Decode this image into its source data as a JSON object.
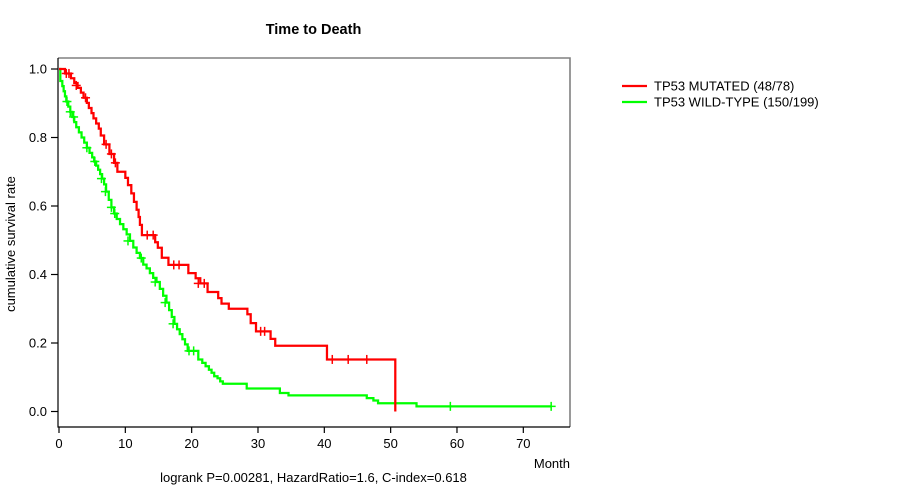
{
  "chart_data": {
    "type": "line",
    "subtype": "kaplan-meier-step",
    "title": "Time to Death",
    "xlabel": "Month",
    "ylabel": "cumulative survival rate",
    "footer": "logrank P=0.00281, HazardRatio=1.6, C-index=0.618",
    "xlim": [
      0,
      77
    ],
    "ylim": [
      0,
      1.0
    ],
    "x_ticks": [
      0,
      10,
      20,
      30,
      40,
      50,
      60,
      70
    ],
    "y_ticks": [
      1.0,
      0.8,
      0.6,
      0.4,
      0.2,
      0.0
    ],
    "y_tick_labels": [
      "1.0",
      "0.8",
      "0.6",
      "0.4",
      "0.2",
      "0.0"
    ],
    "grid": false,
    "legend_position": "right-outside",
    "box_color": "#808080",
    "axis_color": "#000000",
    "stats": {
      "logrank_p": 0.00281,
      "hazard_ratio": 1.6,
      "c_index": 0.618
    },
    "series": [
      {
        "name": "TP53 MUTATED (48/78)",
        "color": "#ff0000",
        "events": 48,
        "n": 78,
        "end_month": 50.7,
        "steps": [
          [
            0,
            1.0
          ],
          [
            0.9,
            0.987
          ],
          [
            1.8,
            0.973
          ],
          [
            2.3,
            0.959
          ],
          [
            2.8,
            0.945
          ],
          [
            3.3,
            0.931
          ],
          [
            3.7,
            0.916
          ],
          [
            4.2,
            0.901
          ],
          [
            4.5,
            0.886
          ],
          [
            4.9,
            0.871
          ],
          [
            5.2,
            0.856
          ],
          [
            5.6,
            0.841
          ],
          [
            6.0,
            0.826
          ],
          [
            6.3,
            0.806
          ],
          [
            6.8,
            0.78
          ],
          [
            7.6,
            0.752
          ],
          [
            8.3,
            0.726
          ],
          [
            8.8,
            0.7
          ],
          [
            10.0,
            0.682
          ],
          [
            10.4,
            0.661
          ],
          [
            10.9,
            0.637
          ],
          [
            11.3,
            0.612
          ],
          [
            11.7,
            0.589
          ],
          [
            12.0,
            0.568
          ],
          [
            12.2,
            0.545
          ],
          [
            12.5,
            0.515
          ],
          [
            14.5,
            0.494
          ],
          [
            14.9,
            0.478
          ],
          [
            15.5,
            0.449
          ],
          [
            16.5,
            0.428
          ],
          [
            19.5,
            0.404
          ],
          [
            20.6,
            0.389
          ],
          [
            21.3,
            0.374
          ],
          [
            22.4,
            0.349
          ],
          [
            24.0,
            0.331
          ],
          [
            24.5,
            0.315
          ],
          [
            25.6,
            0.3
          ],
          [
            28.4,
            0.284
          ],
          [
            28.9,
            0.258
          ],
          [
            29.7,
            0.234
          ],
          [
            31.9,
            0.212
          ],
          [
            32.6,
            0.192
          ],
          [
            40.4,
            0.152
          ],
          [
            50.7,
            0.0
          ]
        ],
        "censors": [
          [
            1.1,
            0.987
          ],
          [
            1.5,
            0.987
          ],
          [
            2.6,
            0.952
          ],
          [
            4.0,
            0.916
          ],
          [
            7.1,
            0.78
          ],
          [
            7.9,
            0.752
          ],
          [
            8.5,
            0.726
          ],
          [
            13.3,
            0.515
          ],
          [
            14.2,
            0.515
          ],
          [
            17.3,
            0.428
          ],
          [
            18.1,
            0.428
          ],
          [
            21.0,
            0.374
          ],
          [
            21.9,
            0.374
          ],
          [
            30.4,
            0.234
          ],
          [
            31.0,
            0.234
          ],
          [
            41.2,
            0.152
          ],
          [
            43.6,
            0.152
          ],
          [
            46.4,
            0.152
          ]
        ]
      },
      {
        "name": "TP53 WILD-TYPE (150/199)",
        "color": "#00ff00",
        "events": 150,
        "n": 199,
        "end_month": 74.2,
        "steps": [
          [
            0,
            1.0
          ],
          [
            0.2,
            0.965
          ],
          [
            0.5,
            0.95
          ],
          [
            0.7,
            0.935
          ],
          [
            0.9,
            0.92
          ],
          [
            1.1,
            0.905
          ],
          [
            1.4,
            0.89
          ],
          [
            1.7,
            0.875
          ],
          [
            2.0,
            0.86
          ],
          [
            2.3,
            0.845
          ],
          [
            2.6,
            0.83
          ],
          [
            3.0,
            0.815
          ],
          [
            3.4,
            0.8
          ],
          [
            3.8,
            0.785
          ],
          [
            4.2,
            0.77
          ],
          [
            4.6,
            0.755
          ],
          [
            5.0,
            0.742
          ],
          [
            5.3,
            0.73
          ],
          [
            5.6,
            0.718
          ],
          [
            5.9,
            0.706
          ],
          [
            6.2,
            0.693
          ],
          [
            6.5,
            0.68
          ],
          [
            6.8,
            0.663
          ],
          [
            7.1,
            0.642
          ],
          [
            7.5,
            0.618
          ],
          [
            7.9,
            0.596
          ],
          [
            8.3,
            0.578
          ],
          [
            8.7,
            0.562
          ],
          [
            9.2,
            0.547
          ],
          [
            9.7,
            0.532
          ],
          [
            10.2,
            0.517
          ],
          [
            10.7,
            0.498
          ],
          [
            11.2,
            0.479
          ],
          [
            11.7,
            0.463
          ],
          [
            12.2,
            0.448
          ],
          [
            12.7,
            0.429
          ],
          [
            13.2,
            0.418
          ],
          [
            13.7,
            0.404
          ],
          [
            14.2,
            0.39
          ],
          [
            14.7,
            0.378
          ],
          [
            15.2,
            0.358
          ],
          [
            15.7,
            0.338
          ],
          [
            16.2,
            0.318
          ],
          [
            16.6,
            0.296
          ],
          [
            17.0,
            0.276
          ],
          [
            17.4,
            0.256
          ],
          [
            17.8,
            0.24
          ],
          [
            18.2,
            0.226
          ],
          [
            18.6,
            0.211
          ],
          [
            19.0,
            0.196
          ],
          [
            19.4,
            0.177
          ],
          [
            21.0,
            0.152
          ],
          [
            21.6,
            0.142
          ],
          [
            22.1,
            0.132
          ],
          [
            22.6,
            0.122
          ],
          [
            23.0,
            0.113
          ],
          [
            23.4,
            0.103
          ],
          [
            23.9,
            0.097
          ],
          [
            24.3,
            0.088
          ],
          [
            24.7,
            0.081
          ],
          [
            28.3,
            0.067
          ],
          [
            33.3,
            0.054
          ],
          [
            34.6,
            0.047
          ],
          [
            46.4,
            0.039
          ],
          [
            47.4,
            0.032
          ],
          [
            48.1,
            0.024
          ],
          [
            53.9,
            0.015
          ]
        ],
        "censors": [
          [
            1.2,
            0.905
          ],
          [
            1.7,
            0.875
          ],
          [
            2.2,
            0.86
          ],
          [
            4.2,
            0.77
          ],
          [
            5.4,
            0.73
          ],
          [
            6.4,
            0.68
          ],
          [
            7.0,
            0.642
          ],
          [
            7.9,
            0.596
          ],
          [
            8.4,
            0.578
          ],
          [
            10.4,
            0.498
          ],
          [
            12.4,
            0.448
          ],
          [
            14.5,
            0.378
          ],
          [
            16.0,
            0.318
          ],
          [
            17.2,
            0.256
          ],
          [
            19.6,
            0.177
          ],
          [
            20.3,
            0.177
          ],
          [
            59.0,
            0.015
          ],
          [
            74.2,
            0.015
          ]
        ]
      }
    ]
  }
}
